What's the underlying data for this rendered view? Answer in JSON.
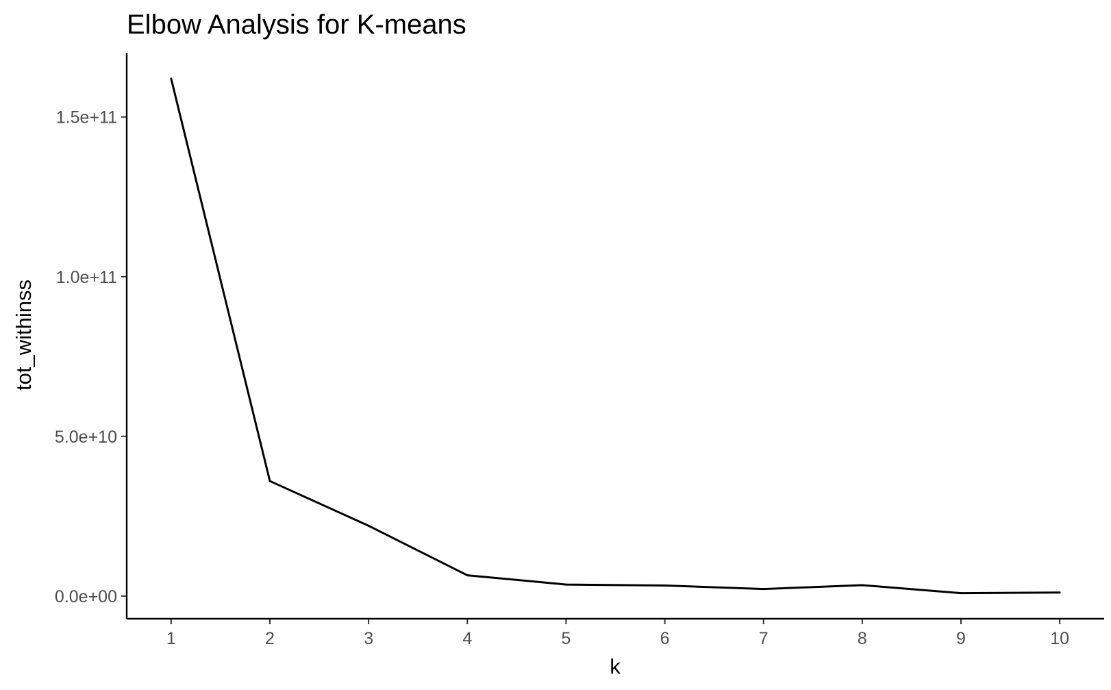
{
  "chart_data": {
    "type": "line",
    "title": "Elbow Analysis for K-means",
    "xlabel": "k",
    "ylabel": "tot_withinss",
    "x": [
      1,
      2,
      3,
      4,
      5,
      6,
      7,
      8,
      9,
      10
    ],
    "series": [
      {
        "values": [
          162000000000,
          36000000000,
          22000000000,
          6500000000,
          3600000000,
          3300000000,
          2200000000,
          3400000000,
          900000000,
          1100000000
        ]
      }
    ],
    "x_ticks": [
      "1",
      "2",
      "3",
      "4",
      "5",
      "6",
      "7",
      "8",
      "9",
      "10"
    ],
    "y_ticks": [
      {
        "value": 0,
        "label": "0.0e+00"
      },
      {
        "value": 50000000000,
        "label": "5.0e+10"
      },
      {
        "value": 100000000000,
        "label": "1.0e+11"
      },
      {
        "value": 150000000000,
        "label": "1.5e+11"
      }
    ],
    "xlim": [
      0.55,
      10.45
    ],
    "ylim": [
      -7110000000,
      170110000000
    ],
    "grid": false,
    "legend": "none",
    "line_color": "#000000"
  }
}
